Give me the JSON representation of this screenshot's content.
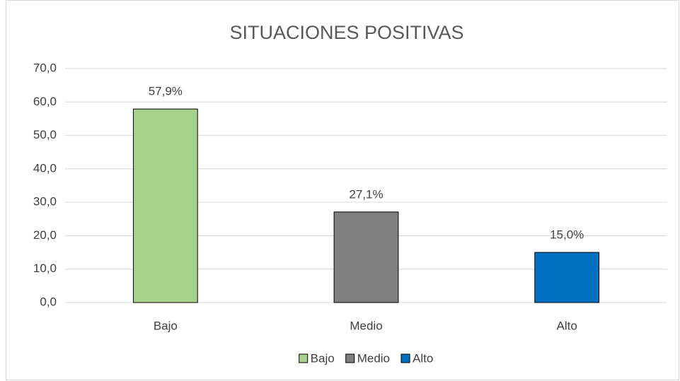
{
  "chart_data": {
    "type": "bar",
    "title": "SITUACIONES POSITIVAS",
    "categories": [
      "Bajo",
      "Medio",
      "Alto"
    ],
    "values": [
      57.9,
      27.1,
      15.0
    ],
    "value_labels": [
      "57,9%",
      "27,1%",
      "15,0%"
    ],
    "colors": [
      "#a9d18e",
      "#7f7f7f",
      "#0070c0"
    ],
    "ylim": [
      0,
      70
    ],
    "yticks": [
      {
        "value": 0,
        "label": "0,0"
      },
      {
        "value": 10,
        "label": "10,0"
      },
      {
        "value": 20,
        "label": "20,0"
      },
      {
        "value": 30,
        "label": "30,0"
      },
      {
        "value": 40,
        "label": "40,0"
      },
      {
        "value": 50,
        "label": "50,0"
      },
      {
        "value": 60,
        "label": "60,0"
      },
      {
        "value": 70,
        "label": "70,0"
      }
    ],
    "grid": true,
    "legend": "bottom"
  }
}
